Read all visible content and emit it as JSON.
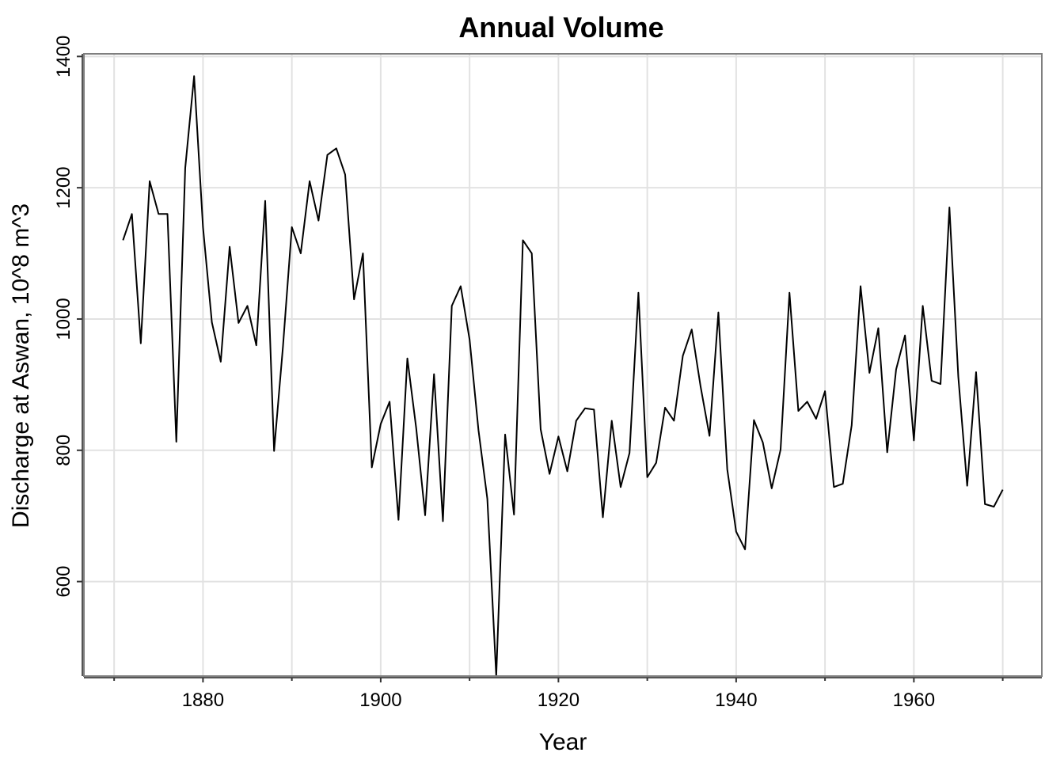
{
  "chart_data": {
    "type": "line",
    "title": "Annual Volume",
    "xlabel": "Year",
    "ylabel": "Discharge at Aswan, 10^8 m^3",
    "xlim": [
      1866.6,
      1974.4
    ],
    "ylim": [
      456,
      1404
    ],
    "grid": true,
    "legend": "none",
    "x_ticks_major": [
      1880,
      1900,
      1920,
      1940,
      1960
    ],
    "x_tick_labels": [
      "1880",
      "1900",
      "1920",
      "1940",
      "1960"
    ],
    "x_ticks_minor": [
      1870,
      1890,
      1910,
      1930,
      1950,
      1970
    ],
    "y_ticks": [
      600,
      800,
      1000,
      1200,
      1400
    ],
    "y_tick_labels": [
      "600",
      "800",
      "1000",
      "1200",
      "1400"
    ],
    "x": [
      1871,
      1872,
      1873,
      1874,
      1875,
      1876,
      1877,
      1878,
      1879,
      1880,
      1881,
      1882,
      1883,
      1884,
      1885,
      1886,
      1887,
      1888,
      1889,
      1890,
      1891,
      1892,
      1893,
      1894,
      1895,
      1896,
      1897,
      1898,
      1899,
      1900,
      1901,
      1902,
      1903,
      1904,
      1905,
      1906,
      1907,
      1908,
      1909,
      1910,
      1911,
      1912,
      1913,
      1914,
      1915,
      1916,
      1917,
      1918,
      1919,
      1920,
      1921,
      1922,
      1923,
      1924,
      1925,
      1926,
      1927,
      1928,
      1929,
      1930,
      1931,
      1932,
      1933,
      1934,
      1935,
      1936,
      1937,
      1938,
      1939,
      1940,
      1941,
      1942,
      1943,
      1944,
      1945,
      1946,
      1947,
      1948,
      1949,
      1950,
      1951,
      1952,
      1953,
      1954,
      1955,
      1956,
      1957,
      1958,
      1959,
      1960,
      1961,
      1962,
      1963,
      1964,
      1965,
      1966,
      1967,
      1968,
      1969,
      1970
    ],
    "series": [
      {
        "name": "Discharge",
        "values": [
          1120,
          1160,
          963,
          1210,
          1160,
          1160,
          813,
          1230,
          1370,
          1140,
          995,
          935,
          1110,
          994,
          1020,
          960,
          1180,
          799,
          958,
          1140,
          1100,
          1210,
          1150,
          1250,
          1260,
          1220,
          1030,
          1100,
          774,
          840,
          874,
          694,
          940,
          833,
          701,
          916,
          692,
          1020,
          1050,
          969,
          831,
          726,
          456,
          824,
          702,
          1120,
          1100,
          832,
          764,
          821,
          768,
          845,
          864,
          862,
          698,
          845,
          744,
          796,
          1040,
          759,
          781,
          865,
          845,
          944,
          984,
          897,
          822,
          1010,
          771,
          676,
          649,
          846,
          812,
          742,
          801,
          1040,
          860,
          874,
          848,
          890,
          744,
          749,
          838,
          1050,
          918,
          986,
          797,
          923,
          975,
          815,
          1020,
          906,
          901,
          1170,
          912,
          746,
          919,
          718,
          714,
          740
        ]
      }
    ]
  }
}
